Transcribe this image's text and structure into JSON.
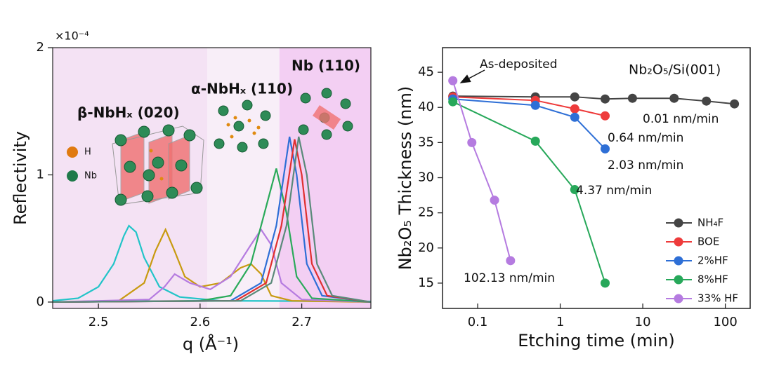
{
  "chart_data": [
    {
      "type": "line",
      "ylabel": "Reflectivity",
      "xlabel": "q (Å⁻¹)",
      "y_multiplier": "×10⁻⁴",
      "xlim": [
        2.455,
        2.768
      ],
      "ylim": [
        -0.05,
        2
      ],
      "xticks": [
        2.5,
        2.6,
        2.7
      ],
      "yticks": [
        0,
        1,
        2
      ],
      "regions": [
        {
          "x": [
            2.455,
            2.607
          ],
          "color": "#f4e2f4"
        },
        {
          "x": [
            2.607,
            2.678
          ],
          "color": "#f8eef8"
        },
        {
          "x": [
            2.678,
            2.768
          ],
          "color": "#f3cff3"
        }
      ],
      "annotations": [
        "β-NbHₓ (020)",
        "α-NbHₓ (110)",
        "Nb (110)"
      ],
      "inset_legend": [
        {
          "label": "H",
          "color": "#e07a10"
        },
        {
          "label": "Nb",
          "color": "#1f7a4a"
        }
      ],
      "series": [
        {
          "color": "#22c4c8",
          "x": [
            2.455,
            2.48,
            2.5,
            2.515,
            2.525,
            2.53,
            2.537,
            2.545,
            2.56,
            2.58,
            2.62,
            2.768
          ],
          "values": [
            0.01,
            0.03,
            0.12,
            0.3,
            0.52,
            0.6,
            0.55,
            0.35,
            0.12,
            0.04,
            0.01,
            0.005
          ]
        },
        {
          "color": "#c89a10",
          "x": [
            2.455,
            2.52,
            2.545,
            2.556,
            2.566,
            2.575,
            2.585,
            2.6,
            2.62,
            2.64,
            2.65,
            2.66,
            2.67,
            2.69,
            2.768
          ],
          "values": [
            0,
            0.01,
            0.15,
            0.4,
            0.57,
            0.4,
            0.2,
            0.12,
            0.15,
            0.27,
            0.3,
            0.22,
            0.05,
            0.01,
            0
          ]
        },
        {
          "color": "#b57be0",
          "x": [
            2.455,
            2.55,
            2.565,
            2.575,
            2.59,
            2.61,
            2.63,
            2.65,
            2.66,
            2.67,
            2.68,
            2.7,
            2.768
          ],
          "values": [
            0,
            0.02,
            0.12,
            0.22,
            0.15,
            0.1,
            0.2,
            0.45,
            0.57,
            0.45,
            0.15,
            0.02,
            0
          ]
        },
        {
          "color": "#2aaa5a",
          "x": [
            2.455,
            2.6,
            2.63,
            2.65,
            2.665,
            2.675,
            2.685,
            2.695,
            2.71,
            2.768
          ],
          "values": [
            0,
            0.01,
            0.05,
            0.3,
            0.75,
            1.05,
            0.7,
            0.2,
            0.03,
            0
          ]
        },
        {
          "color": "#2e6fd6",
          "x": [
            2.455,
            2.63,
            2.66,
            2.675,
            2.688,
            2.695,
            2.705,
            2.72,
            2.768
          ],
          "values": [
            0,
            0.01,
            0.15,
            0.6,
            1.3,
            1.0,
            0.3,
            0.05,
            0
          ]
        },
        {
          "color": "#e03030",
          "x": [
            2.455,
            2.635,
            2.665,
            2.68,
            2.693,
            2.7,
            2.71,
            2.725,
            2.768
          ],
          "values": [
            0,
            0.01,
            0.15,
            0.6,
            1.28,
            1.0,
            0.3,
            0.05,
            0
          ]
        },
        {
          "color": "#5a8a7a",
          "x": [
            2.455,
            2.64,
            2.67,
            2.685,
            2.697,
            2.705,
            2.715,
            2.73,
            2.768
          ],
          "values": [
            0,
            0.01,
            0.15,
            0.6,
            1.3,
            1.0,
            0.3,
            0.05,
            0
          ]
        }
      ]
    },
    {
      "type": "line",
      "xscale": "log",
      "ylabel": "Nb₂O₅ Thickness (nm)",
      "xlabel": "Etching time (min)",
      "title": "Nb₂O₅/Si(001)",
      "annotation": "As-deposited",
      "xlim": [
        0.0375,
        200
      ],
      "ylim": [
        11.4,
        48.5
      ],
      "xticks": [
        0.1,
        1,
        10,
        100
      ],
      "yticks": [
        15,
        20,
        25,
        30,
        35,
        40,
        45
      ],
      "legend": "lower right",
      "series": [
        {
          "name": "NH₄F",
          "color": "#444444",
          "x": [
            0.05,
            0.5,
            1.5,
            3.5,
            7.5,
            24,
            59,
            129
          ],
          "values": [
            41.6,
            41.5,
            41.5,
            41.2,
            41.3,
            41.3,
            40.9,
            40.5
          ],
          "rate_label": "0.01 nm/min"
        },
        {
          "name": "BOE",
          "color": "#ee3b3b",
          "x": [
            0.05,
            0.5,
            1.5,
            3.5
          ],
          "values": [
            41.5,
            41.0,
            39.8,
            38.8
          ],
          "rate_label": "0.64 nm/min"
        },
        {
          "name": "2%HF",
          "color": "#2e6fd6",
          "x": [
            0.05,
            0.5,
            1.5,
            3.5
          ],
          "values": [
            41.2,
            40.3,
            38.6,
            34.1
          ],
          "rate_label": "2.03 nm/min"
        },
        {
          "name": "8%HF",
          "color": "#27a85a",
          "x": [
            0.05,
            0.5,
            1.5,
            3.5
          ],
          "values": [
            40.8,
            35.2,
            28.3,
            15.0
          ],
          "rate_label": "4.37 nm/min"
        },
        {
          "name": "33% HF",
          "color": "#b57be0",
          "x": [
            0.05,
            0.085,
            0.16,
            0.25
          ],
          "values": [
            43.8,
            35.0,
            26.8,
            18.2
          ],
          "rate_label": "102.13 nm/min"
        }
      ]
    }
  ]
}
